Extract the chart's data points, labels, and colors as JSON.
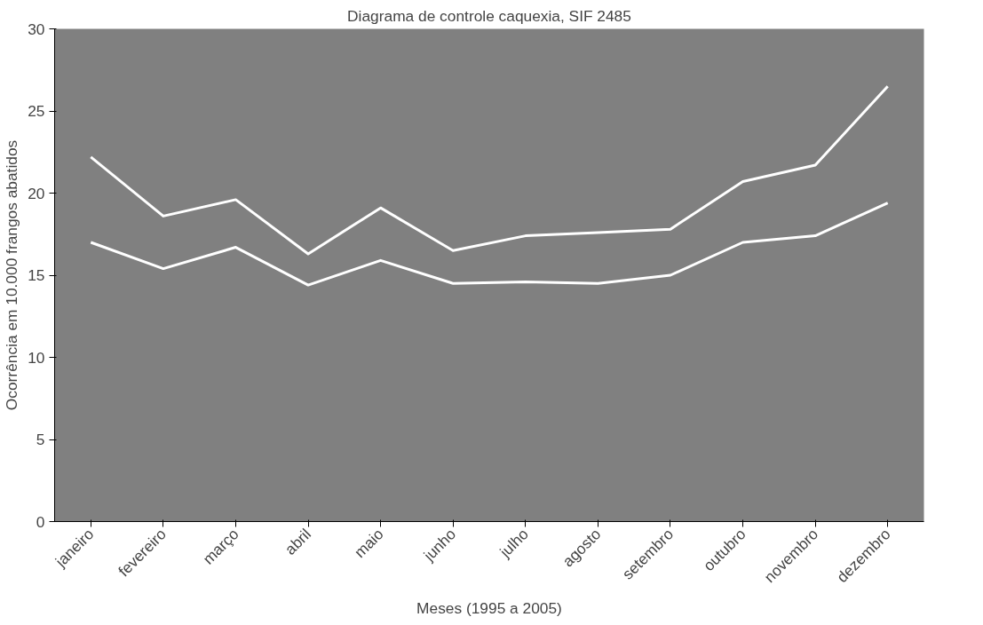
{
  "chart_data": {
    "type": "line",
    "title": "Diagrama de controle caquexia, SIF 2485",
    "xlabel": "Meses (1995 a 2005)",
    "ylabel": "Ocorrência em 10.000 frangos abatidos",
    "categories": [
      "janeiro",
      "fevereiro",
      "março",
      "abril",
      "maio",
      "junho",
      "julho",
      "agosto",
      "setembro",
      "outubro",
      "novembro",
      "dezembro"
    ],
    "series": [
      {
        "color": "#ffffff",
        "values": [
          22.2,
          18.6,
          19.6,
          16.3,
          19.1,
          16.5,
          17.4,
          17.6,
          17.8,
          20.7,
          21.7,
          26.5
        ]
      },
      {
        "color": "#ffffff",
        "values": [
          17.0,
          15.4,
          16.7,
          14.4,
          15.9,
          14.5,
          14.6,
          14.5,
          15.0,
          17.0,
          17.4,
          19.4
        ]
      }
    ],
    "ylim": [
      0,
      30
    ],
    "yticks": [
      0,
      5,
      10,
      15,
      20,
      25,
      30
    ],
    "grid": false,
    "line_style": "solid"
  }
}
